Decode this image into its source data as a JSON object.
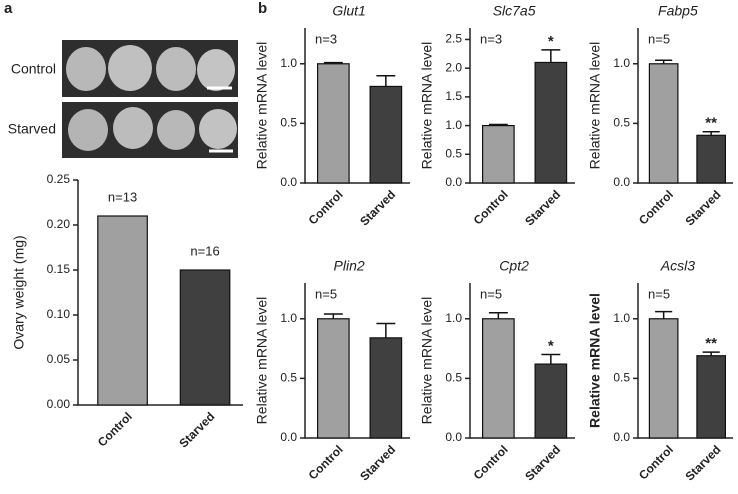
{
  "panel_labels": [
    "a",
    "b"
  ],
  "photo": {
    "rows": [
      "Control",
      "Starved"
    ]
  },
  "chart_data": [
    {
      "type": "bar",
      "ylabel": "Ovary weight (mg)",
      "categories": [
        "Control",
        "Starved"
      ],
      "values": [
        0.21,
        0.15
      ],
      "colors": [
        "#a0a0a0",
        "#404040"
      ],
      "annotations": [
        "n=13",
        "n=16"
      ],
      "ylim": [
        0,
        0.25
      ],
      "yticks": [
        {
          "value": 0,
          "label": "0.00"
        },
        {
          "value": 0.05,
          "label": "0.05"
        },
        {
          "value": 0.1,
          "label": "0.10"
        },
        {
          "value": 0.15,
          "label": "0.15"
        },
        {
          "value": 0.2,
          "label": "0.20"
        },
        {
          "value": 0.25,
          "label": "0.25"
        }
      ]
    },
    {
      "type": "bar",
      "title": "Glut1",
      "annotation": "n=3",
      "ylabel": "Relative mRNA level",
      "categories": [
        "Control",
        "Starved"
      ],
      "values": [
        1.0,
        0.81
      ],
      "errors": [
        0.01,
        0.09
      ],
      "colors": [
        "#a0a0a0",
        "#404040"
      ],
      "ylim": [
        0,
        1.3
      ],
      "yticks": [
        {
          "value": 0,
          "label": "0.0"
        },
        {
          "value": 0.5,
          "label": "0.5"
        },
        {
          "value": 1,
          "label": "1.0"
        }
      ]
    },
    {
      "type": "bar",
      "title": "Slc7a5",
      "annotation": "n=3",
      "ylabel": "Relative mRNA level",
      "categories": [
        "Control",
        "Starved"
      ],
      "values": [
        1.0,
        2.1
      ],
      "errors": [
        0.02,
        0.22
      ],
      "significance": [
        null,
        "*"
      ],
      "colors": [
        "#a0a0a0",
        "#404040"
      ],
      "ylim": [
        0,
        2.7
      ],
      "yticks": [
        {
          "value": 0,
          "label": "0.0"
        },
        {
          "value": 0.5,
          "label": "0.5"
        },
        {
          "value": 1,
          "label": "1.0"
        },
        {
          "value": 1.5,
          "label": "1.5"
        },
        {
          "value": 2,
          "label": "2.0"
        },
        {
          "value": 2.5,
          "label": "2.5"
        }
      ]
    },
    {
      "type": "bar",
      "title": "Fabp5",
      "annotation": "n=5",
      "ylabel": "Relative mRNA level",
      "categories": [
        "Control",
        "Starved"
      ],
      "values": [
        1.0,
        0.4
      ],
      "errors": [
        0.03,
        0.03
      ],
      "significance": [
        null,
        "**"
      ],
      "colors": [
        "#a0a0a0",
        "#404040"
      ],
      "ylim": [
        0,
        1.3
      ],
      "yticks": [
        {
          "value": 0,
          "label": "0.0"
        },
        {
          "value": 0.5,
          "label": "0.5"
        },
        {
          "value": 1,
          "label": "1.0"
        }
      ]
    },
    {
      "type": "bar",
      "title": "Plin2",
      "annotation": "n=5",
      "ylabel": "Relative mRNA level",
      "categories": [
        "Control",
        "Starved"
      ],
      "values": [
        1.0,
        0.84
      ],
      "errors": [
        0.04,
        0.12
      ],
      "colors": [
        "#a0a0a0",
        "#404040"
      ],
      "ylim": [
        0,
        1.3
      ],
      "yticks": [
        {
          "value": 0,
          "label": "0.0"
        },
        {
          "value": 0.5,
          "label": "0.5"
        },
        {
          "value": 1,
          "label": "1.0"
        }
      ]
    },
    {
      "type": "bar",
      "title": "Cpt2",
      "annotation": "n=5",
      "ylabel": "Relative mRNA level",
      "categories": [
        "Control",
        "Starved"
      ],
      "values": [
        1.0,
        0.62
      ],
      "errors": [
        0.05,
        0.08
      ],
      "significance": [
        null,
        "*"
      ],
      "colors": [
        "#a0a0a0",
        "#404040"
      ],
      "ylim": [
        0,
        1.3
      ],
      "yticks": [
        {
          "value": 0,
          "label": "0.0"
        },
        {
          "value": 0.5,
          "label": "0.5"
        },
        {
          "value": 1,
          "label": "1.0"
        }
      ]
    },
    {
      "type": "bar",
      "title": "Acsl3",
      "annotation": "n=5",
      "ylabel": "Relative mRNA level",
      "ylabel_bold": true,
      "categories": [
        "Control",
        "Starved"
      ],
      "values": [
        1.0,
        0.69
      ],
      "errors": [
        0.06,
        0.03
      ],
      "significance": [
        null,
        "**"
      ],
      "colors": [
        "#a0a0a0",
        "#404040"
      ],
      "ylim": [
        0,
        1.3
      ],
      "yticks": [
        {
          "value": 0,
          "label": "0.0"
        },
        {
          "value": 0.5,
          "label": "0.5"
        },
        {
          "value": 1,
          "label": "1.0"
        }
      ]
    }
  ]
}
